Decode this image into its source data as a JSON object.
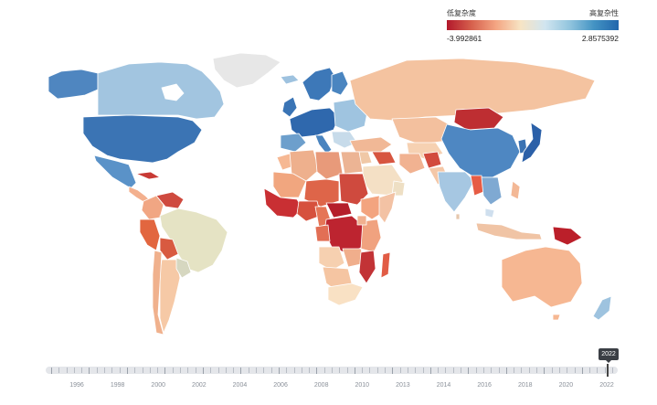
{
  "legend": {
    "low_label": "低复杂度",
    "high_label": "高复杂性",
    "min_value": "-3.992861",
    "max_value": "2.8575392",
    "colors": [
      "#b2182b",
      "#d6604d",
      "#f4a582",
      "#f7e4c4",
      "#d1e5f0",
      "#92c5de",
      "#4393c3",
      "#2166ac"
    ]
  },
  "timeline": {
    "current_year": "2022",
    "year_labels": [
      "1996",
      "1998",
      "2000",
      "2002",
      "2004",
      "2006",
      "2008",
      "2010",
      "2013",
      "2014",
      "2016",
      "2018",
      "2020",
      "2022"
    ]
  }
}
